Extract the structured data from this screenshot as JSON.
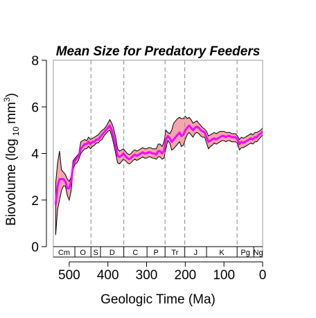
{
  "chart_data": {
    "type": "area",
    "title": "Mean Size for Predatory Feeders",
    "xlabel": "Geologic Time (Ma)",
    "ylabel_main": "Biovolume (log",
    "ylabel_sub": "10",
    "ylabel_unit": "mm",
    "ylabel_sup": "3",
    "ylabel_close": ")",
    "xlim": [
      541,
      0
    ],
    "ylim": [
      0,
      8
    ],
    "x_ticks": [
      500,
      400,
      300,
      200,
      100,
      0
    ],
    "y_ticks": [
      0,
      2,
      4,
      6,
      8
    ],
    "colors": {
      "mean_line": "#ff00ff",
      "band_fill": "#f4a6ac",
      "boundary": "#888888"
    },
    "period_boundaries": [
      443.8,
      358.9,
      252.2,
      201.3,
      66.0
    ],
    "periods": [
      {
        "label": "Cm",
        "start": 541,
        "end": 485.4
      },
      {
        "label": "O",
        "start": 485.4,
        "end": 443.8
      },
      {
        "label": "S",
        "start": 443.8,
        "end": 419.2
      },
      {
        "label": "D",
        "start": 419.2,
        "end": 358.9
      },
      {
        "label": "C",
        "start": 358.9,
        "end": 298.9
      },
      {
        "label": "P",
        "start": 298.9,
        "end": 252.2
      },
      {
        "label": "Tr",
        "start": 252.2,
        "end": 201.3
      },
      {
        "label": "J",
        "start": 201.3,
        "end": 145
      },
      {
        "label": "K",
        "start": 145,
        "end": 66
      },
      {
        "label": "Pg",
        "start": 66,
        "end": 23
      },
      {
        "label": "Ng",
        "start": 23,
        "end": 0
      }
    ],
    "series": [
      {
        "x": [
          535,
          530,
          525,
          520,
          515,
          510,
          505,
          500,
          495,
          490,
          485,
          480,
          475,
          470,
          465,
          460,
          455,
          450,
          445,
          440,
          435,
          430,
          425,
          420,
          415,
          410,
          405,
          400,
          395,
          390,
          385,
          380,
          375,
          370,
          365,
          360,
          355,
          350,
          345,
          340,
          335,
          330,
          325,
          320,
          315,
          310,
          305,
          300,
          295,
          290,
          285,
          280,
          275,
          270,
          265,
          260,
          255,
          250,
          245,
          240,
          235,
          230,
          225,
          220,
          215,
          210,
          205,
          200,
          195,
          190,
          185,
          180,
          175,
          170,
          165,
          160,
          155,
          150,
          145,
          140,
          135,
          130,
          125,
          120,
          115,
          110,
          105,
          100,
          95,
          90,
          85,
          80,
          75,
          70,
          65,
          60,
          55,
          50,
          45,
          40,
          35,
          30,
          25,
          20,
          15,
          10,
          5,
          0
        ],
        "mean": [
          1.8,
          2.6,
          2.9,
          2.9,
          2.9,
          2.8,
          2.5,
          2.5,
          2.8,
          3.5,
          3.7,
          3.8,
          3.9,
          4.2,
          4.3,
          4.4,
          4.4,
          4.5,
          4.4,
          4.5,
          4.5,
          4.6,
          4.6,
          4.7,
          4.8,
          4.9,
          5.0,
          5.1,
          5.2,
          5.0,
          4.7,
          4.3,
          3.9,
          3.85,
          3.9,
          4.0,
          3.9,
          3.8,
          3.75,
          3.8,
          3.9,
          3.95,
          3.9,
          3.95,
          4.0,
          4.05,
          4.0,
          4.0,
          4.05,
          4.05,
          4.0,
          4.0,
          3.95,
          4.1,
          4.1,
          4.0,
          4.1,
          4.6,
          4.75,
          4.65,
          4.5,
          4.6,
          4.7,
          4.8,
          4.9,
          4.75,
          4.8,
          5.0,
          5.1,
          5.2,
          5.1,
          5.0,
          5.1,
          5.15,
          5.1,
          5.0,
          4.95,
          4.9,
          4.7,
          4.5,
          4.55,
          4.6,
          4.65,
          4.6,
          4.65,
          4.7,
          4.75,
          4.75,
          4.7,
          4.75,
          4.75,
          4.7,
          4.7,
          4.7,
          4.6,
          4.4,
          4.5,
          4.45,
          4.5,
          4.55,
          4.6,
          4.65,
          4.6,
          4.7,
          4.7,
          4.8,
          4.85,
          4.95
        ],
        "upper": [
          2.7,
          3.6,
          4.1,
          3.3,
          3.2,
          3.1,
          2.9,
          2.8,
          3.0,
          3.7,
          3.8,
          3.9,
          4.0,
          4.5,
          4.55,
          4.6,
          4.55,
          4.7,
          4.6,
          4.65,
          4.7,
          4.75,
          4.8,
          4.9,
          5.0,
          5.05,
          5.15,
          5.3,
          5.45,
          5.3,
          5.05,
          4.7,
          4.2,
          4.1,
          4.15,
          4.2,
          4.1,
          4.0,
          3.95,
          4.0,
          4.1,
          4.15,
          4.1,
          4.15,
          4.2,
          4.25,
          4.2,
          4.2,
          4.25,
          4.25,
          4.2,
          4.2,
          4.2,
          4.4,
          4.4,
          4.3,
          4.5,
          5.0,
          4.9,
          4.85,
          5.0,
          5.3,
          5.4,
          5.5,
          5.55,
          5.5,
          5.5,
          5.6,
          5.5,
          5.55,
          5.45,
          5.3,
          5.35,
          5.4,
          5.3,
          5.2,
          5.1,
          5.05,
          4.95,
          4.75,
          4.8,
          4.85,
          4.9,
          4.85,
          4.9,
          4.95,
          4.95,
          4.95,
          4.9,
          4.9,
          4.9,
          4.85,
          4.85,
          4.85,
          4.75,
          4.6,
          4.7,
          4.65,
          4.7,
          4.75,
          4.8,
          4.85,
          4.8,
          4.9,
          4.9,
          4.95,
          5.0,
          5.1
        ],
        "lower": [
          0.5,
          1.6,
          2.0,
          2.4,
          2.6,
          2.6,
          2.2,
          2.0,
          2.4,
          3.3,
          3.55,
          3.6,
          3.75,
          4.0,
          4.1,
          4.2,
          4.2,
          4.3,
          4.2,
          4.3,
          4.35,
          4.45,
          4.45,
          4.55,
          4.6,
          4.75,
          4.85,
          4.95,
          5.0,
          4.75,
          4.4,
          4.0,
          3.6,
          3.55,
          3.65,
          3.75,
          3.7,
          3.6,
          3.55,
          3.6,
          3.7,
          3.75,
          3.7,
          3.75,
          3.8,
          3.85,
          3.8,
          3.8,
          3.85,
          3.85,
          3.8,
          3.8,
          3.75,
          3.85,
          3.85,
          3.75,
          3.8,
          4.2,
          4.55,
          4.45,
          4.15,
          4.2,
          4.3,
          4.4,
          4.5,
          4.3,
          4.35,
          4.6,
          4.8,
          4.9,
          4.8,
          4.7,
          4.85,
          4.9,
          4.85,
          4.75,
          4.7,
          4.7,
          4.45,
          4.2,
          4.3,
          4.35,
          4.45,
          4.4,
          4.45,
          4.5,
          4.55,
          4.55,
          4.5,
          4.55,
          4.55,
          4.5,
          4.5,
          4.5,
          4.45,
          4.15,
          4.25,
          4.25,
          4.3,
          4.35,
          4.4,
          4.45,
          4.4,
          4.5,
          4.5,
          4.6,
          4.7,
          4.8
        ]
      }
    ]
  }
}
